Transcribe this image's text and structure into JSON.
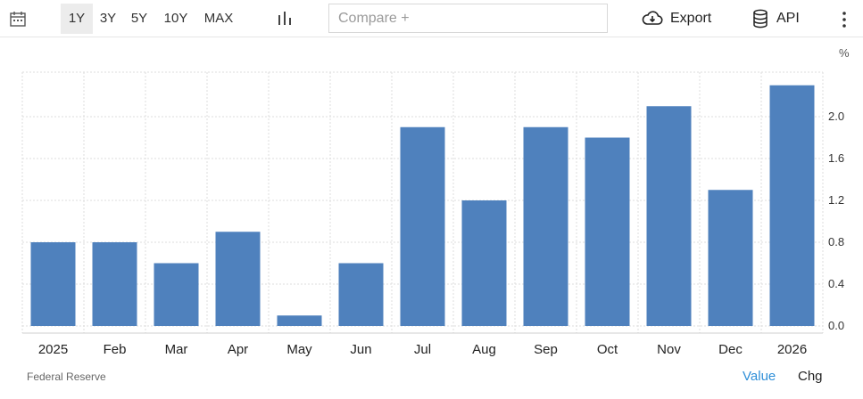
{
  "toolbar": {
    "calendar_icon": "calendar-icon",
    "ranges": [
      "1Y",
      "3Y",
      "5Y",
      "10Y",
      "MAX"
    ],
    "active_range": "1Y",
    "chart_type_icon": "bar-chart-icon",
    "compare_placeholder": "Compare +",
    "export_label": "Export",
    "export_icon": "cloud-download-icon",
    "api_label": "API",
    "api_icon": "database-icon",
    "more_icon": "kebab-menu-icon"
  },
  "colors": {
    "bar": "#4f81bd",
    "grid": "#dddddd",
    "active_tab": "#2f8fd8"
  },
  "footer": {
    "source": "Federal Reserve",
    "tabs": [
      "Value",
      "Chg"
    ],
    "active_tab": "Value"
  },
  "chart_data": {
    "type": "bar",
    "categories": [
      "2025",
      "Feb",
      "Mar",
      "Apr",
      "May",
      "Jun",
      "Jul",
      "Aug",
      "Sep",
      "Oct",
      "Nov",
      "Dec",
      "2026"
    ],
    "values": [
      0.8,
      0.8,
      0.6,
      0.9,
      0.1,
      0.6,
      1.9,
      1.2,
      1.9,
      1.8,
      2.1,
      1.3,
      2.3
    ],
    "y_unit": "%",
    "ylim": [
      0,
      2.4
    ],
    "yticks": [
      0.0,
      0.4,
      0.8,
      1.2,
      1.6,
      2.0
    ],
    "ytick_labels": [
      "0.0",
      "0.4",
      "0.8",
      "1.2",
      "1.6",
      "2.0"
    ],
    "grid": true,
    "y_axis_side": "right"
  }
}
